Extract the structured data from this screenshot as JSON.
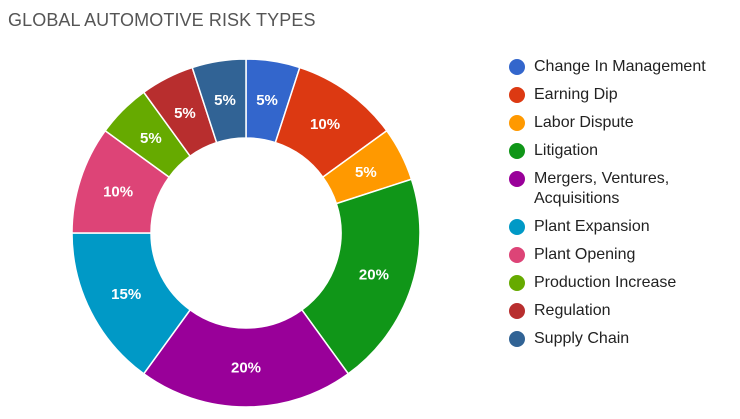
{
  "chart_data": {
    "type": "pie",
    "title": "GLOBAL AUTOMOTIVE RISK TYPES",
    "hole": true,
    "legend_position": "right",
    "categories": [
      "Change In Management",
      "Earning Dip",
      "Labor Dispute",
      "Litigation",
      "Mergers, Ventures, Acquisitions",
      "Plant Expansion",
      "Plant Opening",
      "Production Increase",
      "Regulation",
      "Supply Chain"
    ],
    "legend_lines": [
      [
        "Change In Management"
      ],
      [
        "Earning Dip"
      ],
      [
        "Labor Dispute"
      ],
      [
        "Litigation"
      ],
      [
        "Mergers, Ventures,",
        "Acquisitions"
      ],
      [
        "Plant Expansion"
      ],
      [
        "Plant Opening"
      ],
      [
        "Production Increase"
      ],
      [
        "Regulation"
      ],
      [
        "Supply Chain"
      ]
    ],
    "values": [
      5,
      10,
      5,
      20,
      20,
      15,
      10,
      5,
      5,
      5
    ],
    "value_labels": [
      "5%",
      "10%",
      "5%",
      "20%",
      "20%",
      "15%",
      "10%",
      "5%",
      "5%",
      "5%"
    ],
    "colors": [
      "#3366cc",
      "#dc3912",
      "#ff9900",
      "#109618",
      "#990099",
      "#0099c6",
      "#dd4477",
      "#66aa00",
      "#b82e2e",
      "#316395"
    ]
  }
}
